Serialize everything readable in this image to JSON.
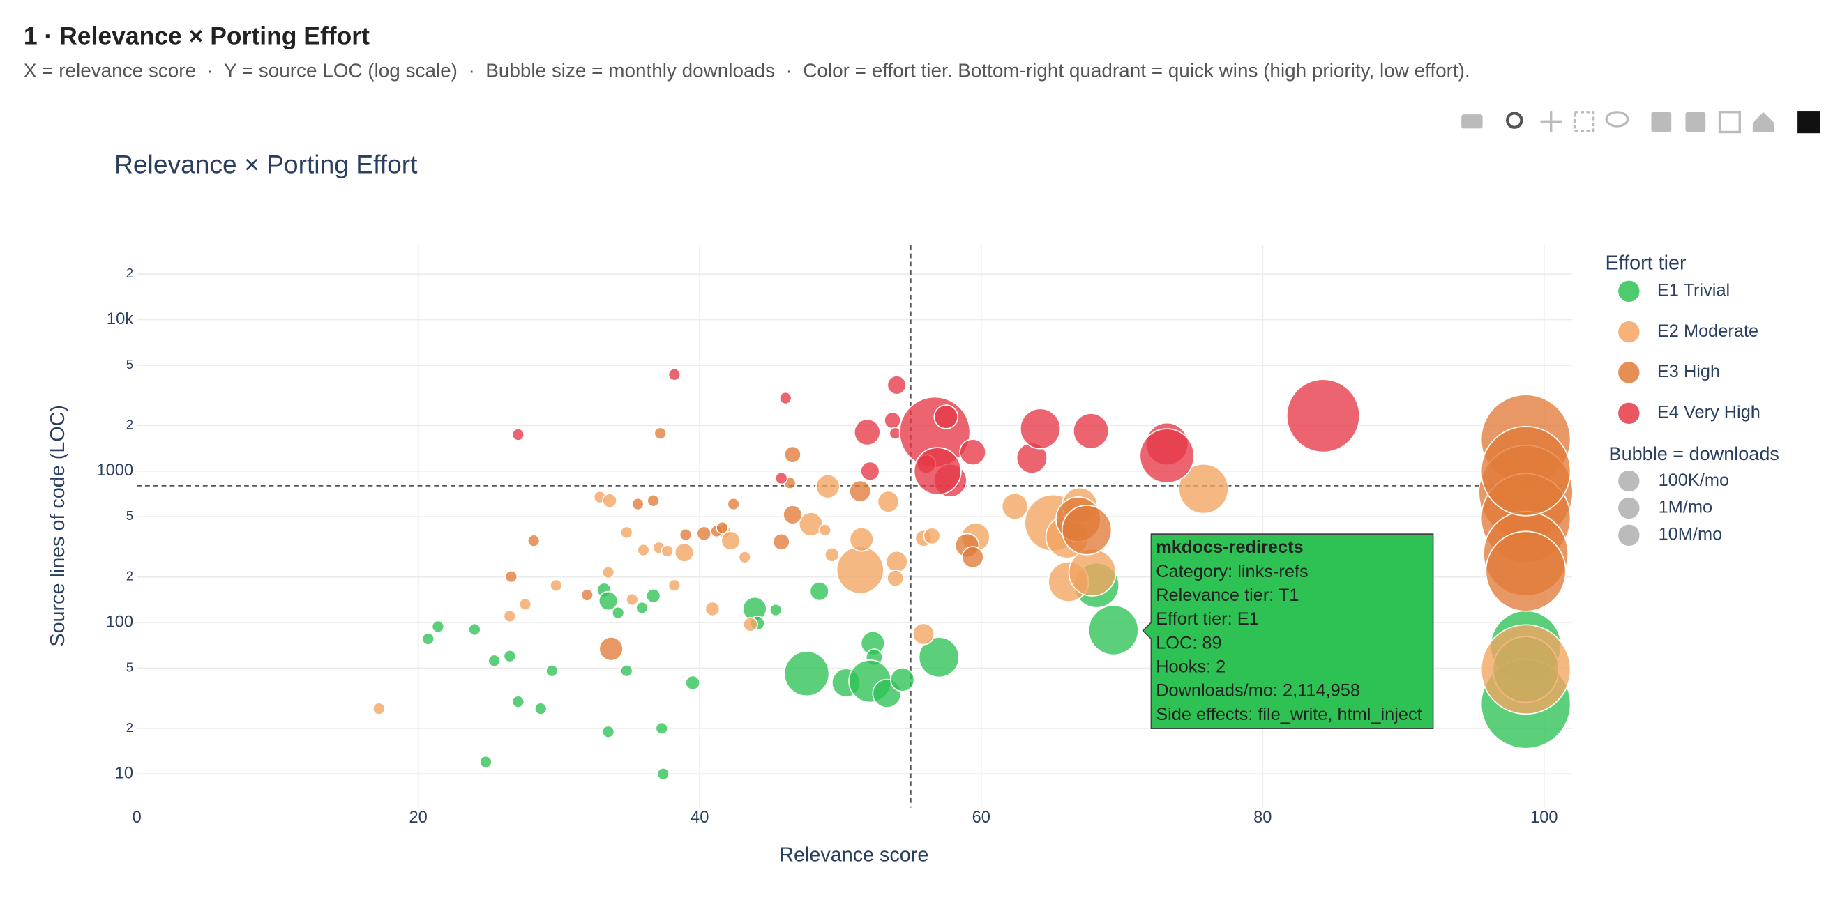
{
  "header": {
    "title": "1 · Relevance × Porting Effort",
    "subtitle": "X = relevance score  ·  Y = source LOC (log scale)  ·  Bubble size = monthly downloads  ·  Color = effort tier. Bottom-right quadrant = quick wins (high priority, low effort)."
  },
  "chart_data": {
    "type": "scatter",
    "title": "Relevance × Porting Effort",
    "xlabel": "Relevance score",
    "ylabel": "Source lines of code (LOC)",
    "xlim": [
      0,
      102
    ],
    "ylim": [
      6,
      31000
    ],
    "log_y": true,
    "grid": true,
    "xticks": [
      0,
      20,
      40,
      60,
      80,
      100
    ],
    "yticks": [
      10,
      {
        "value": 20,
        "label": "2"
      },
      {
        "value": 50,
        "label": "5"
      },
      100,
      {
        "value": 200,
        "label": "2"
      },
      {
        "value": 500,
        "label": "5"
      },
      1000,
      {
        "value": 2000,
        "label": "2"
      },
      {
        "value": 5000,
        "label": "5"
      },
      {
        "value": 10000,
        "label": "10k"
      },
      {
        "value": 20000,
        "label": "2"
      }
    ],
    "reference_lines": {
      "x": 55,
      "y": 800
    },
    "legend_title": "Effort tier",
    "legend_position": "right",
    "series": [
      {
        "name": "E1 Trivial",
        "color": "#2ec254",
        "x": [
          20.7,
          21.4,
          24.0,
          25.4,
          26.5,
          27.1,
          28.7,
          29.5,
          24.8,
          33.2,
          33.5,
          34.2,
          35.9,
          36.7,
          34.8,
          33.5,
          37.3,
          37.4,
          39.5,
          43.9,
          44.1,
          45.4,
          48.5,
          47.6,
          50.4,
          52.3,
          52.4,
          52.1,
          53.3,
          54.4,
          57.0,
          68.2,
          69.4,
          98.7,
          98.7,
          98.7
        ],
        "values": [
          78,
          94,
          90,
          56,
          60,
          30,
          27,
          48,
          12,
          164,
          139,
          116,
          125,
          150,
          48,
          19,
          20,
          10,
          40,
          123,
          99,
          121,
          161,
          46,
          40,
          73,
          59,
          41,
          34,
          42,
          59,
          176,
          89,
          70,
          29,
          49
        ],
        "sizes": [
          120000,
          120000,
          120000,
          120000,
          120000,
          120000,
          120000,
          120000,
          120000,
          170000,
          300000,
          120000,
          120000,
          170000,
          120000,
          120000,
          120000,
          120000,
          170000,
          480000,
          170000,
          120000,
          300000,
          1720000,
          690000,
          480000,
          230000,
          1540000,
          690000,
          480000,
          1380000,
          1720000,
          2114958,
          4280000,
          6870000,
          3730000
        ]
      },
      {
        "name": "E2 Moderate",
        "color": "#f4a460",
        "x": [
          17.2,
          32.9,
          33.6,
          34.8,
          36.0,
          37.1,
          37.7,
          33.5,
          29.8,
          27.6,
          26.5,
          35.2,
          38.2,
          38.9,
          40.9,
          43.6,
          41.7,
          42.2,
          43.2,
          47.9,
          48.9,
          49.1,
          49.4,
          51.4,
          51.5,
          53.4,
          54.0,
          53.9,
          55.9,
          55.9,
          56.5,
          59.6,
          62.4,
          65.1,
          66.1,
          67.0,
          66.2,
          67.9,
          75.8,
          98.7
        ],
        "values": [
          27,
          673,
          638,
          393,
          301,
          312,
          296,
          214,
          176,
          132,
          110,
          142,
          176,
          290,
          123,
          97,
          401,
          347,
          270,
          446,
          408,
          792,
          280,
          222,
          354,
          628,
          252,
          196,
          84,
          360,
          373,
          367,
          585,
          455,
          367,
          594,
          186,
          214,
          764,
          49
        ],
        "sizes": [
          120000,
          120000,
          170000,
          120000,
          120000,
          120000,
          120000,
          120000,
          120000,
          120000,
          120000,
          120000,
          120000,
          300000,
          170000,
          170000,
          170000,
          300000,
          120000,
          480000,
          120000,
          480000,
          170000,
          1900000,
          480000,
          390000,
          390000,
          230000,
          390000,
          230000,
          230000,
          690000,
          580000,
          2740000,
          1540000,
          1070000,
          1380000,
          1900000,
          2100000,
          6870000
        ]
      },
      {
        "name": "E3 High",
        "color": "#e07b39",
        "x": [
          26.6,
          28.2,
          32.0,
          33.7,
          35.6,
          36.7,
          37.2,
          39.0,
          40.3,
          41.2,
          41.6,
          42.4,
          45.8,
          46.6,
          46.6,
          46.4,
          51.4,
          59.0,
          59.4,
          66.9,
          67.5,
          98.7,
          98.7,
          98.7,
          98.7,
          98.7,
          98.7
        ],
        "values": [
          201,
          347,
          152,
          67,
          606,
          638,
          1775,
          380,
          387,
          401,
          423,
          606,
          341,
          515,
          1285,
          836,
          737,
          323,
          270,
          480,
          408,
          1622,
          724,
          489,
          285,
          218,
          1000
        ],
        "sizes": [
          120000,
          120000,
          120000,
          480000,
          120000,
          120000,
          120000,
          120000,
          170000,
          120000,
          120000,
          120000,
          230000,
          300000,
          230000,
          120000,
          390000,
          480000,
          390000,
          1720000,
          2100000,
          6870000,
          7620000,
          6870000,
          6170000,
          5500000,
          6870000
        ]
      },
      {
        "name": "E4 Very High",
        "color": "#e63946",
        "x": [
          27.1,
          38.2,
          46.1,
          45.8,
          54.0,
          53.7,
          51.9,
          52.1,
          53.9,
          56.7,
          57.5,
          57.8,
          56.1,
          56.9,
          59.4,
          63.6,
          64.2,
          67.8,
          73.2,
          73.2,
          84.3
        ],
        "values": [
          1742,
          4345,
          3034,
          897,
          3699,
          2163,
          1806,
          1000,
          1775,
          1806,
          2280,
          867,
          1114,
          1000,
          1334,
          1219,
          1906,
          1841,
          1510,
          1262,
          2321
        ],
        "sizes": [
          120000,
          120000,
          120000,
          120000,
          300000,
          230000,
          580000,
          300000,
          120000,
          4280000,
          480000,
          930000,
          300000,
          1900000,
          580000,
          800000,
          1380000,
          1070000,
          1540000,
          2520000,
          4570000
        ]
      }
    ],
    "size_legend": {
      "title": "Bubble = downloads",
      "labels": [
        "100K/mo",
        "1M/mo",
        "10M/mo"
      ]
    },
    "tooltip": {
      "title": "mkdocs-redirects",
      "lines": [
        "Category: links-refs",
        "Relevance tier: T1",
        "Effort tier: E1",
        "LOC: 89",
        "Hooks: 2",
        "Downloads/mo: 2,114,958",
        "Side effects: file_write, html_inject"
      ]
    }
  }
}
